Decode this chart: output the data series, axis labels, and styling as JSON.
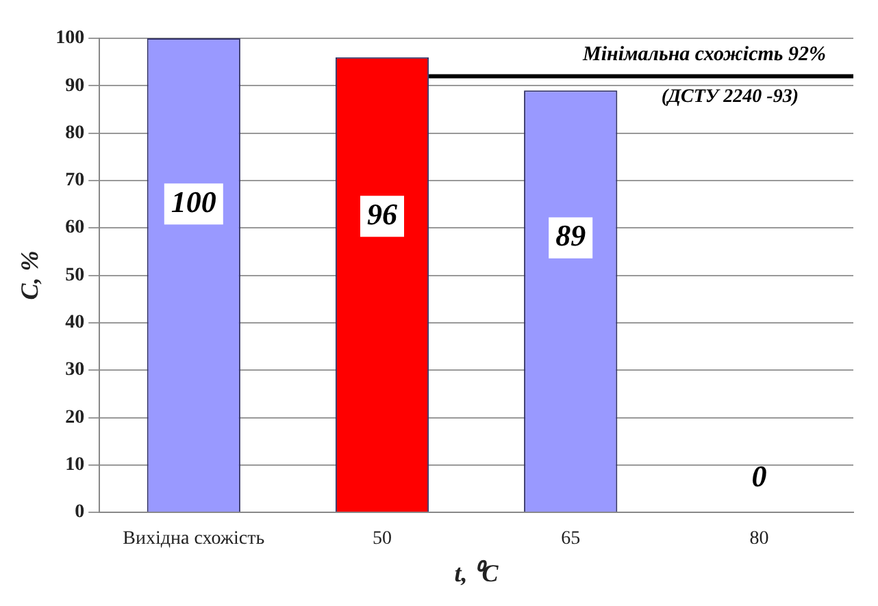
{
  "chart_data": {
    "type": "bar",
    "xlabel": "t, ⁰C",
    "ylabel": "C, %",
    "categories": [
      "Вихідна схожість",
      "50",
      "65",
      "80"
    ],
    "values": [
      100,
      96,
      89,
      0
    ],
    "colors": [
      "#9999ff",
      "#ff0000",
      "#9999ff",
      "#9999ff"
    ],
    "ylim": [
      0,
      100
    ],
    "yticks": [
      0,
      10,
      20,
      30,
      40,
      50,
      60,
      70,
      80,
      90,
      100
    ],
    "grid": "y",
    "legend": false,
    "data_labels": true,
    "ref_lines": [
      {
        "axis": "y",
        "value": 92,
        "label": "Мінімальна схожість 92%",
        "color": "#000000"
      }
    ],
    "annotations": [
      "(ДСТУ 2240 -93)"
    ]
  }
}
